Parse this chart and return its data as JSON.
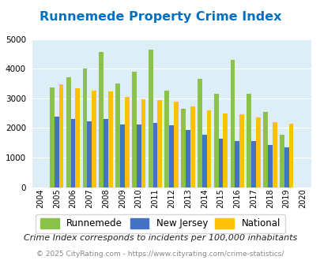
{
  "title": "Runnemede Property Crime Index",
  "years": [
    2004,
    2005,
    2006,
    2007,
    2008,
    2009,
    2010,
    2011,
    2012,
    2013,
    2014,
    2015,
    2016,
    2017,
    2018,
    2019,
    2020
  ],
  "runnemede": [
    null,
    3370,
    3700,
    4000,
    4550,
    3500,
    3900,
    4650,
    3250,
    2650,
    3670,
    3150,
    4300,
    3150,
    2530,
    1760,
    null
  ],
  "new_jersey": [
    null,
    2370,
    2300,
    2230,
    2310,
    2110,
    2110,
    2170,
    2080,
    1940,
    1760,
    1640,
    1560,
    1570,
    1430,
    1340,
    null
  ],
  "national": [
    null,
    3460,
    3350,
    3260,
    3220,
    3050,
    2960,
    2930,
    2890,
    2740,
    2600,
    2500,
    2460,
    2360,
    2200,
    2140,
    null
  ],
  "runnemede_color": "#8bc34a",
  "new_jersey_color": "#4472c4",
  "national_color": "#ffc107",
  "bg_color": "#ddeef6",
  "title_color": "#0070c0",
  "ylim": [
    0,
    5000
  ],
  "yticks": [
    0,
    1000,
    2000,
    3000,
    4000,
    5000
  ],
  "subtitle": "Crime Index corresponds to incidents per 100,000 inhabitants",
  "footer": "© 2025 CityRating.com - https://www.cityrating.com/crime-statistics/",
  "legend_labels": [
    "Runnemede",
    "New Jersey",
    "National"
  ]
}
